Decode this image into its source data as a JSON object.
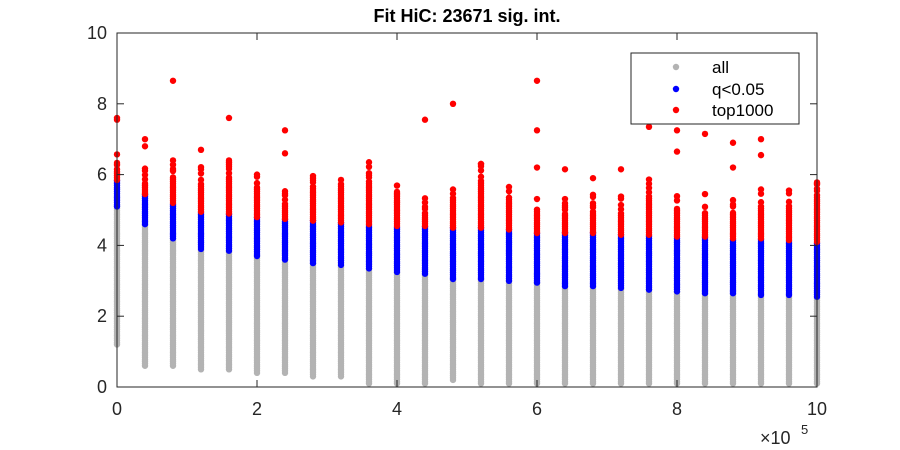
{
  "chart_data": {
    "type": "scatter",
    "title": "Fit HiC: 23671 sig. int.",
    "xlabel": "",
    "ylabel": "",
    "xlim": [
      0,
      1000000
    ],
    "ylim": [
      0,
      10
    ],
    "x_ticks": [
      0,
      200000,
      400000,
      600000,
      800000,
      1000000
    ],
    "x_tick_labels": [
      "0",
      "2",
      "4",
      "6",
      "8",
      "10"
    ],
    "x_exponent_label": {
      "base": "×10",
      "exponent": "5"
    },
    "y_ticks": [
      0,
      2,
      4,
      6,
      8,
      10
    ],
    "y_tick_labels": [
      "0",
      "2",
      "4",
      "6",
      "8",
      "10"
    ],
    "grid": false,
    "legend": {
      "position": "top-right",
      "entries": [
        {
          "name": "all",
          "color": "#b3b3b3"
        },
        {
          "name": "q<0.05",
          "color": "#0000ff"
        },
        {
          "name": "top1000",
          "color": "#ff0000"
        }
      ]
    },
    "x_positions": [
      0,
      40000,
      80000,
      120000,
      160000,
      200000,
      240000,
      280000,
      320000,
      360000,
      400000,
      440000,
      480000,
      520000,
      560000,
      600000,
      640000,
      680000,
      720000,
      760000,
      800000,
      840000,
      880000,
      920000,
      960000,
      1000000
    ],
    "series": [
      {
        "name": "all",
        "color": "#b3b3b3",
        "min": [
          1.2,
          0.6,
          0.6,
          0.5,
          0.5,
          0.4,
          0.4,
          0.3,
          0.3,
          0.1,
          0.1,
          0.1,
          0.2,
          0.1,
          0.1,
          0.1,
          0.1,
          0.1,
          0.1,
          0.1,
          0.1,
          0.1,
          0.1,
          0.1,
          0.1,
          0.1
        ],
        "max": [
          5.1,
          4.6,
          4.2,
          3.9,
          3.85,
          3.7,
          3.6,
          3.5,
          3.45,
          3.35,
          3.25,
          3.2,
          3.05,
          3.05,
          3.0,
          2.95,
          2.85,
          2.85,
          2.8,
          2.75,
          2.7,
          2.65,
          2.65,
          2.6,
          2.6,
          2.55
        ]
      },
      {
        "name": "q<0.05",
        "color": "#0000ff",
        "min": [
          5.1,
          4.6,
          4.2,
          3.9,
          3.85,
          3.7,
          3.6,
          3.5,
          3.45,
          3.35,
          3.25,
          3.2,
          3.05,
          3.05,
          3.0,
          2.95,
          2.85,
          2.85,
          2.8,
          2.75,
          2.7,
          2.65,
          2.65,
          2.6,
          2.6,
          2.55
        ],
        "max": [
          5.85,
          5.45,
          5.2,
          4.95,
          4.9,
          4.8,
          4.75,
          4.7,
          4.65,
          4.6,
          4.55,
          4.55,
          4.5,
          4.5,
          4.45,
          4.35,
          4.35,
          4.35,
          4.3,
          4.3,
          4.25,
          4.25,
          4.2,
          4.2,
          4.15,
          4.1
        ]
      },
      {
        "name": "top1000",
        "color": "#ff0000",
        "min": [
          5.85,
          5.45,
          5.2,
          4.95,
          4.9,
          4.8,
          4.75,
          4.7,
          4.65,
          4.6,
          4.55,
          4.55,
          4.5,
          4.5,
          4.45,
          4.35,
          4.35,
          4.35,
          4.3,
          4.3,
          4.25,
          4.25,
          4.2,
          4.2,
          4.15,
          4.1
        ],
        "max": [
          6.6,
          6.25,
          6.4,
          6.25,
          6.45,
          6.1,
          5.7,
          6.0,
          5.85,
          6.3,
          5.7,
          5.45,
          5.75,
          6.3,
          5.75,
          5.55,
          5.35,
          5.45,
          5.4,
          5.9,
          5.55,
          5.45,
          5.3,
          5.65,
          5.5,
          5.8
        ],
        "outliers": [
          [
            0,
            7.6
          ],
          [
            0,
            7.55
          ],
          [
            40000,
            7.0
          ],
          [
            40000,
            6.8
          ],
          [
            80000,
            8.65
          ],
          [
            120000,
            6.7
          ],
          [
            160000,
            7.6
          ],
          [
            240000,
            7.25
          ],
          [
            240000,
            6.6
          ],
          [
            360000,
            6.35
          ],
          [
            440000,
            7.55
          ],
          [
            480000,
            8.0
          ],
          [
            520000,
            6.3
          ],
          [
            600000,
            8.65
          ],
          [
            600000,
            7.25
          ],
          [
            600000,
            6.2
          ],
          [
            640000,
            6.15
          ],
          [
            680000,
            5.9
          ],
          [
            720000,
            6.15
          ],
          [
            760000,
            7.35
          ],
          [
            800000,
            7.25
          ],
          [
            800000,
            6.65
          ],
          [
            840000,
            7.15
          ],
          [
            880000,
            6.9
          ],
          [
            880000,
            6.2
          ],
          [
            920000,
            7.0
          ],
          [
            920000,
            6.55
          ],
          [
            960000,
            5.55
          ],
          [
            1000000,
            5.75
          ]
        ]
      }
    ]
  }
}
